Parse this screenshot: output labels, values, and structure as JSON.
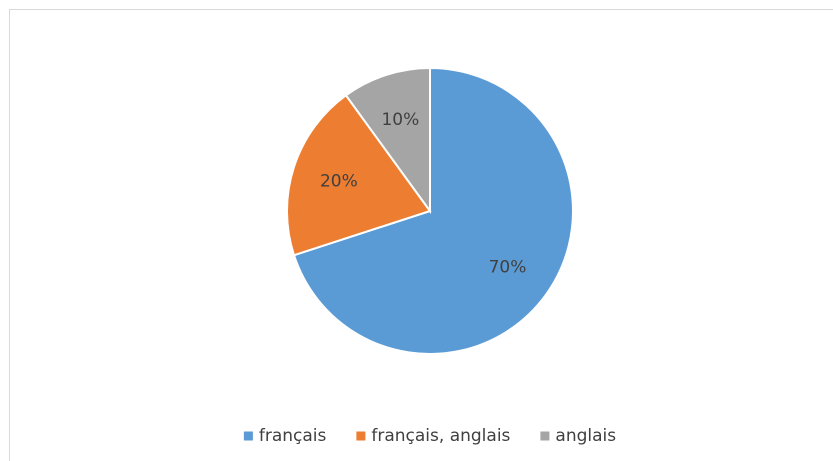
{
  "chart_data": {
    "type": "pie",
    "categories": [
      "français",
      "français, anglais",
      "anglais"
    ],
    "values": [
      70,
      20,
      10
    ],
    "value_labels": [
      "70%",
      "20%",
      "10%"
    ],
    "colors": [
      "#5b9bd5",
      "#ed7d31",
      "#a5a5a5"
    ],
    "legend": "bottom"
  }
}
